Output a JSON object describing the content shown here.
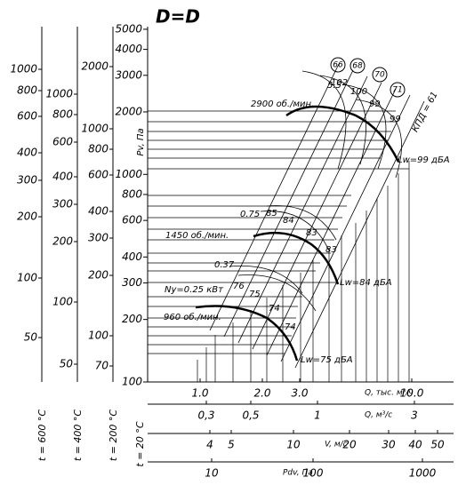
{
  "title": "D=D",
  "main_axis": {
    "label": "t = 20 °C",
    "title": "Pv, Па",
    "ticks": [
      5000,
      4000,
      3000,
      2000,
      1000,
      800,
      600,
      400,
      300,
      200,
      100
    ]
  },
  "temp_axes": [
    {
      "label": "t = 600 °C",
      "ticks": [
        1000,
        800,
        600,
        400,
        300,
        200,
        100,
        50
      ]
    },
    {
      "label": "t = 400 °C",
      "ticks": [
        1000,
        800,
        600,
        400,
        300,
        200,
        100,
        50
      ]
    },
    {
      "label": "t = 200 °C",
      "ticks": [
        2000,
        1000,
        800,
        600,
        400,
        300,
        200,
        100,
        70
      ]
    }
  ],
  "bottom_scales": [
    {
      "title": "Q, тыс. м³/ч",
      "ticks": [
        "1.0",
        "2.0",
        "3.0",
        "10.0"
      ]
    },
    {
      "title": "Q, м³/с",
      "ticks": [
        "0,3",
        "0,5",
        "1",
        "3"
      ]
    },
    {
      "title": "V, м/с",
      "ticks": [
        4,
        5,
        10,
        20,
        30,
        40,
        50
      ]
    },
    {
      "title": "Pdv, Па",
      "ticks": [
        10,
        100,
        1000
      ]
    }
  ],
  "efficiency_circles": [
    "66",
    "68",
    "70",
    "71"
  ],
  "efficiency_label": "КПД = 61",
  "annotations": [
    "2900 об./мин.",
    "5.5",
    "102",
    "100",
    "99",
    "99",
    "Lw=99 дБА",
    "0.75",
    "85",
    "84",
    "83",
    "83",
    "1450 об./мин.",
    "Lw=84 дБА",
    "0.37",
    "Ny=0.25 кВт",
    "76",
    "75",
    "74",
    "74",
    "960 об./мин.",
    "Lw=75 дБА"
  ]
}
